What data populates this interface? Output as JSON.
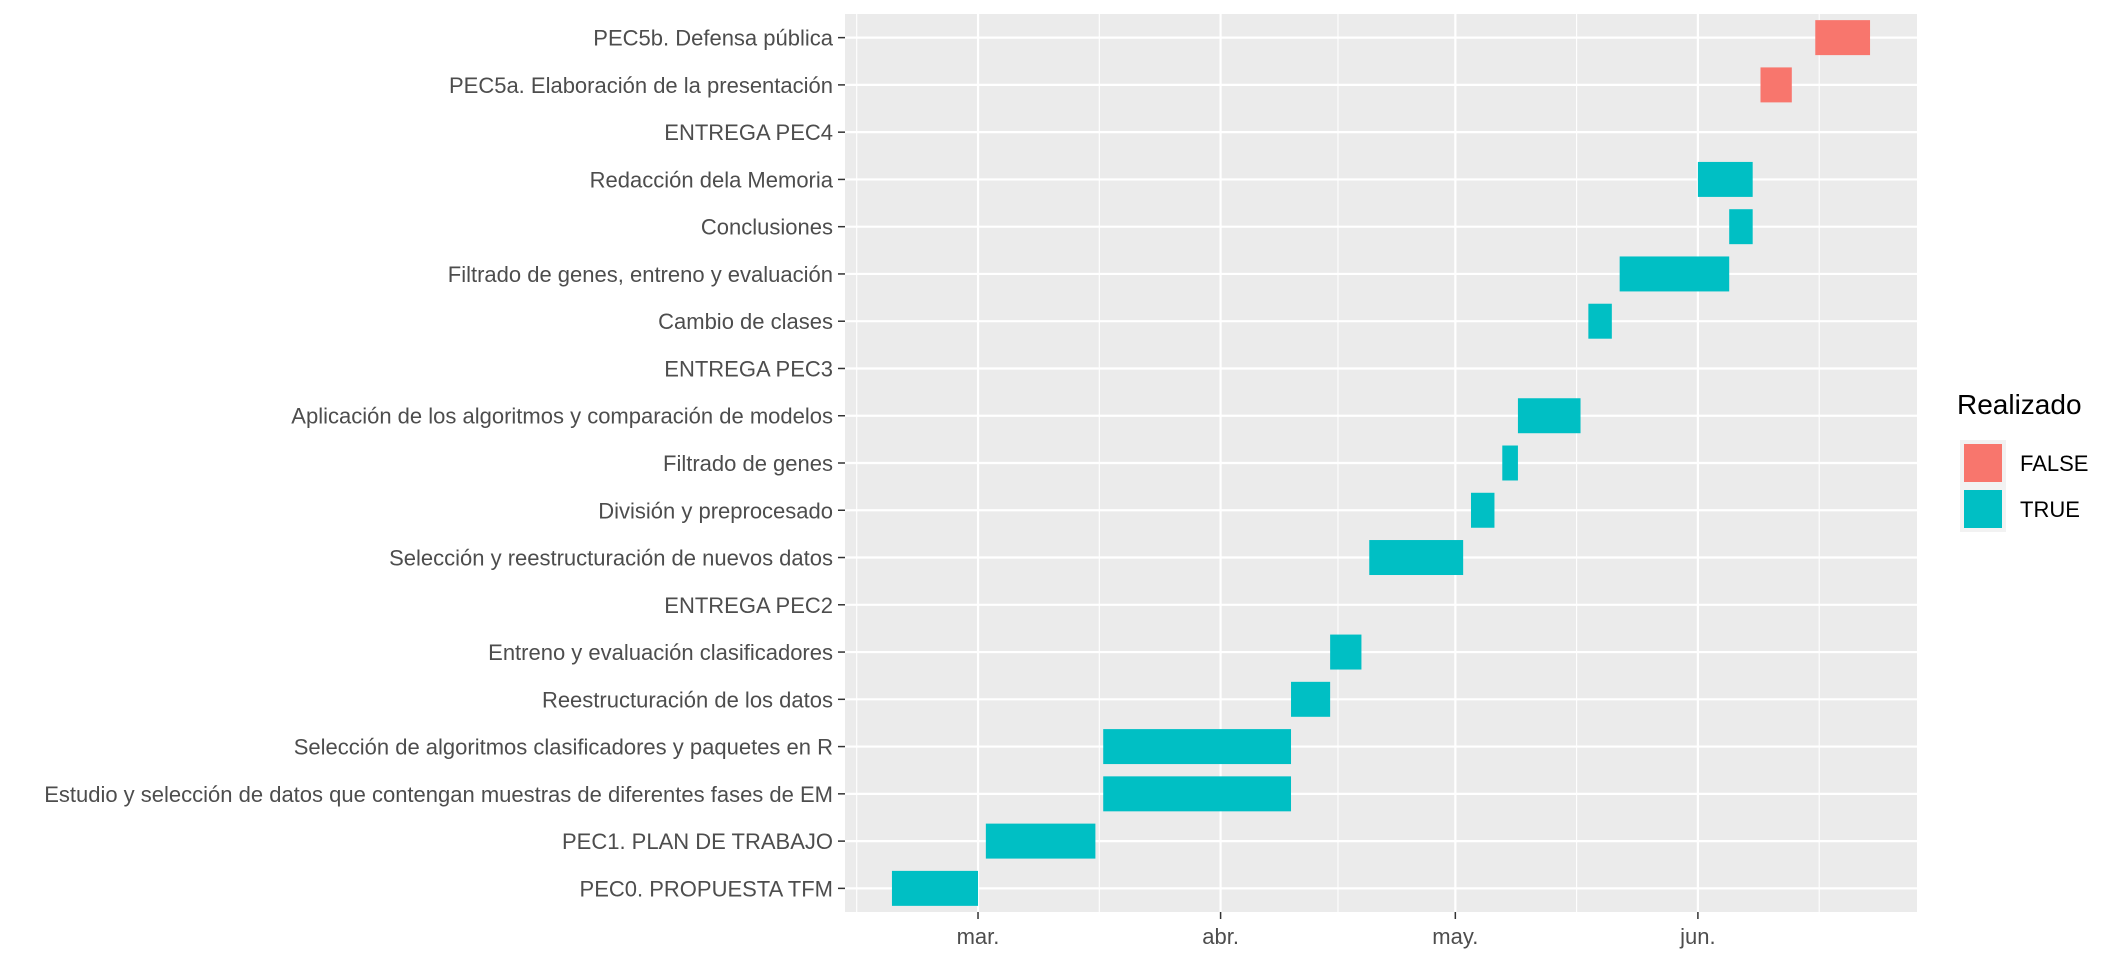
{
  "chart_data": {
    "type": "gantt",
    "x_ticks": [
      {
        "label": "mar.",
        "date": "2024-03-01"
      },
      {
        "label": "abr.",
        "date": "2024-04-01"
      },
      {
        "label": "may.",
        "date": "2024-05-01"
      },
      {
        "label": "jun.",
        "date": "2024-06-01"
      }
    ],
    "x_range": [
      "2024-02-13",
      "2024-06-29"
    ],
    "grid": true,
    "legend": {
      "title": "Realizado",
      "position": "right",
      "entries": [
        {
          "label": "FALSE",
          "color": "#F8766D"
        },
        {
          "label": "TRUE",
          "color": "#00BFC4"
        }
      ]
    },
    "tasks": [
      {
        "label": "PEC0. PROPUESTA TFM",
        "start": "2024-02-19",
        "end": "2024-03-01",
        "realizado": true
      },
      {
        "label": "PEC1. PLAN DE TRABAJO",
        "start": "2024-03-02",
        "end": "2024-03-16",
        "realizado": true
      },
      {
        "label": "Estudio y selección de datos que contengan muestras de diferentes fases de EM",
        "start": "2024-03-17",
        "end": "2024-04-10",
        "realizado": true
      },
      {
        "label": "Selección de algoritmos clasificadores y paquetes en R",
        "start": "2024-03-17",
        "end": "2024-04-10",
        "realizado": true
      },
      {
        "label": "Reestructuración de los datos",
        "start": "2024-04-10",
        "end": "2024-04-15",
        "realizado": true
      },
      {
        "label": "Entreno y evaluación clasificadores",
        "start": "2024-04-15",
        "end": "2024-04-19",
        "realizado": true
      },
      {
        "label": "ENTREGA PEC2",
        "start": null,
        "end": null,
        "realizado": null
      },
      {
        "label": "Selección y reestructuración de nuevos datos",
        "start": "2024-04-20",
        "end": "2024-05-02",
        "realizado": true
      },
      {
        "label": "División y preprocesado",
        "start": "2024-05-03",
        "end": "2024-05-06",
        "realizado": true
      },
      {
        "label": "Filtrado de genes",
        "start": "2024-05-07",
        "end": "2024-05-09",
        "realizado": true
      },
      {
        "label": "Aplicación de los algoritmos y comparación de modelos",
        "start": "2024-05-09",
        "end": "2024-05-17",
        "realizado": true
      },
      {
        "label": "ENTREGA PEC3",
        "start": null,
        "end": null,
        "realizado": null
      },
      {
        "label": "Cambio de clases",
        "start": "2024-05-18",
        "end": "2024-05-21",
        "realizado": true
      },
      {
        "label": "Filtrado de genes, entreno y evaluación",
        "start": "2024-05-22",
        "end": "2024-06-05",
        "realizado": true
      },
      {
        "label": "Conclusiones",
        "start": "2024-06-05",
        "end": "2024-06-08",
        "realizado": true
      },
      {
        "label": "Redacción dela Memoria",
        "start": "2024-06-01",
        "end": "2024-06-08",
        "realizado": true
      },
      {
        "label": "ENTREGA PEC4",
        "start": null,
        "end": null,
        "realizado": null
      },
      {
        "label": "PEC5a. Elaboración de la presentación",
        "start": "2024-06-09",
        "end": "2024-06-13",
        "realizado": false
      },
      {
        "label": "PEC5b. Defensa pública",
        "start": "2024-06-16",
        "end": "2024-06-23",
        "realizado": false
      }
    ]
  }
}
